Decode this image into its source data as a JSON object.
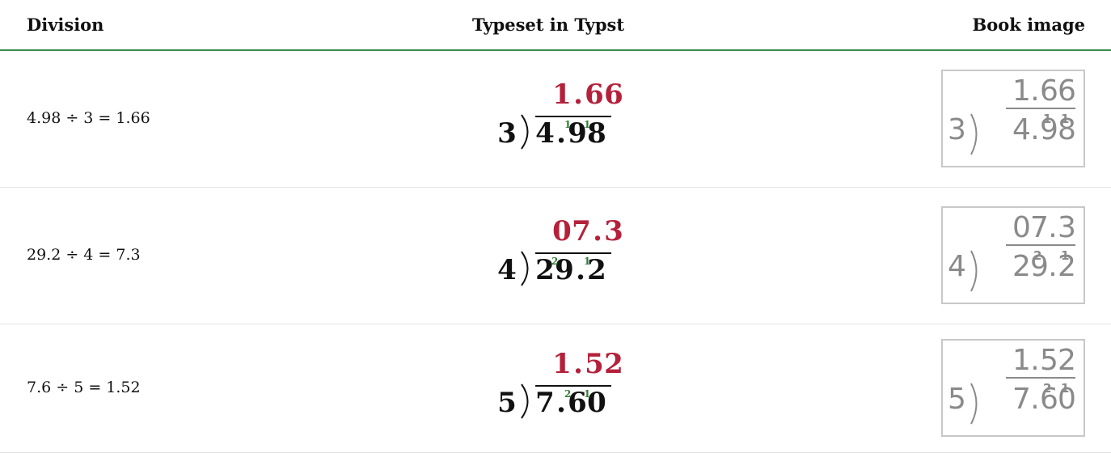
{
  "header": {
    "division": "Division",
    "typeset": "Typeset in Typst",
    "book": "Book image"
  },
  "rows": [
    {
      "equation": "4.98 ÷ 3 = 1.66",
      "divisor": "3",
      "quotient": [
        "1",
        ".",
        "6",
        "6"
      ],
      "dividend": [
        {
          "digit": "4"
        },
        {
          "digit": "."
        },
        {
          "digit": "9",
          "carry": "1"
        },
        {
          "digit": "8",
          "carry": "1"
        }
      ]
    },
    {
      "equation": "29.2 ÷ 4 = 7.3",
      "divisor": "4",
      "quotient": [
        "0",
        "7",
        ".",
        "3"
      ],
      "dividend": [
        {
          "digit": "2"
        },
        {
          "digit": "9",
          "carry": "2"
        },
        {
          "digit": "."
        },
        {
          "digit": "2",
          "carry": "1"
        }
      ]
    },
    {
      "equation": "7.6 ÷ 5 = 1.52",
      "divisor": "5",
      "quotient": [
        "1",
        ".",
        "5",
        "2"
      ],
      "dividend": [
        {
          "digit": "7"
        },
        {
          "digit": "."
        },
        {
          "digit": "6",
          "carry": "2"
        },
        {
          "digit": "0",
          "carry": "1"
        }
      ]
    }
  ]
}
